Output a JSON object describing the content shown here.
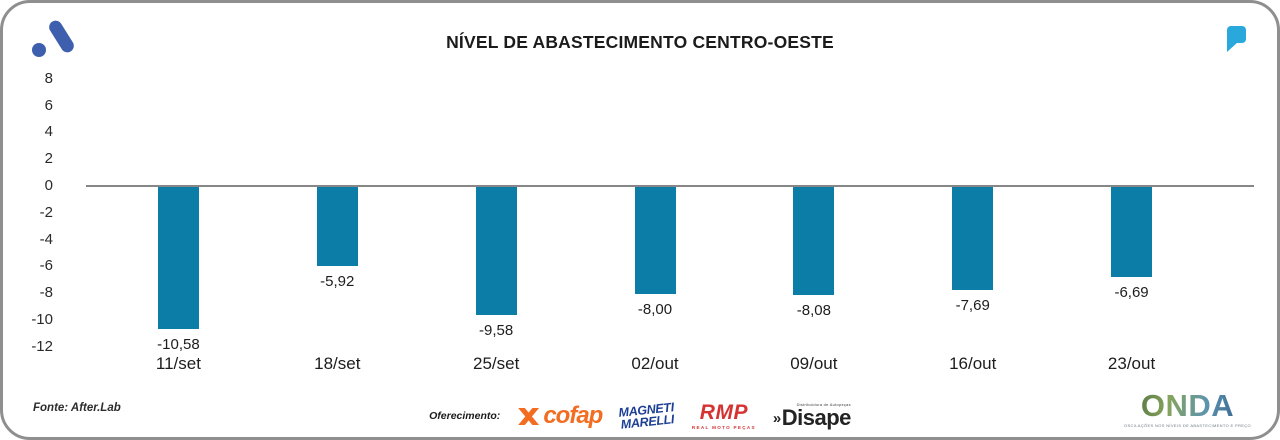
{
  "header": {
    "brand_color": "#3D5FAD",
    "quote_color": "#29A8DC"
  },
  "chart_data": {
    "type": "bar",
    "title": "NÍVEL DE ABASTECIMENTO CENTRO-OESTE",
    "categories": [
      "11/set",
      "18/set",
      "25/set",
      "02/out",
      "09/out",
      "16/out",
      "23/out"
    ],
    "values": [
      -10.58,
      -5.92,
      -9.58,
      -8.0,
      -8.08,
      -7.69,
      -6.69
    ],
    "value_labels": [
      "-10,58",
      "-5,92",
      "-9,58",
      "-8,00",
      "-8,08",
      "-7,69",
      "-6,69"
    ],
    "y_ticks": [
      "8",
      "6",
      "4",
      "2",
      "0",
      "-2",
      "-4",
      "-6",
      "-8",
      "-10",
      "-12"
    ],
    "ylim": [
      -12,
      8
    ],
    "xlabel": "",
    "ylabel": "",
    "grid": false,
    "legend": null,
    "bar_color": "#0C7DA6",
    "axis_line_color": "#878787"
  },
  "footer": {
    "source": "Fonte: After.Lab",
    "sponsor_label": "Oferecimento:",
    "cofap": {
      "text": "cofap",
      "color": "#F26D21"
    },
    "magneti": {
      "line1": "MAGNETI",
      "line2": "MARELLI",
      "color": "#1C3F94"
    },
    "rmp": {
      "text": "RMP",
      "sub": "REAL MOTO PEÇAS",
      "color": "#D43332"
    },
    "disape": {
      "chevrons": "»",
      "text": "Disape",
      "sub": "Distribuidora de Autopeças"
    },
    "onda": {
      "text": "ONDA",
      "sub": "OSCILAÇÕES NOS NÍVEIS DE ABASTECIMENTO E PREÇO"
    }
  }
}
